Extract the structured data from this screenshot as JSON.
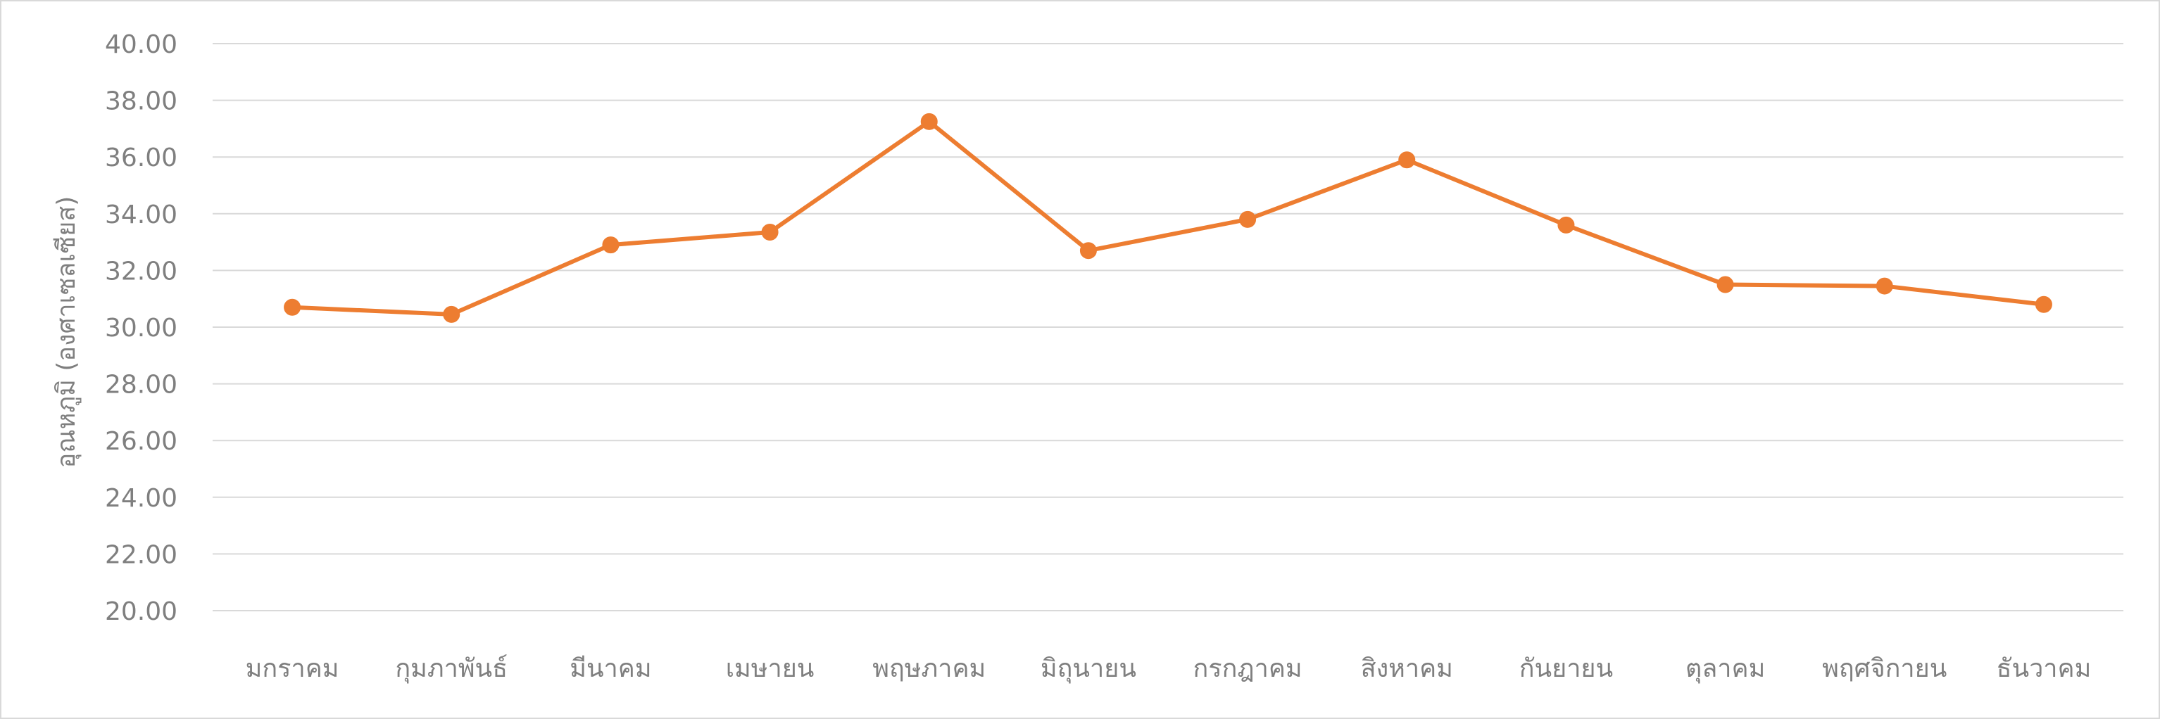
{
  "colors": {
    "series": "#ed7d31",
    "grid": "#d9d9d9",
    "text": "#7f7f7f",
    "background": "#ffffff"
  },
  "chart_data": {
    "type": "line",
    "title": "",
    "xlabel": "",
    "ylabel": "อุณหภูมิ (องศาเซลเซียส)",
    "ylim": [
      20,
      40
    ],
    "yticks": [
      "20.00",
      "22.00",
      "24.00",
      "26.00",
      "28.00",
      "30.00",
      "32.00",
      "34.00",
      "36.00",
      "38.00",
      "40.00"
    ],
    "grid": true,
    "legend": "none",
    "categories": [
      "มกราคม",
      "กุมภาพันธ์",
      "มีนาคม",
      "เมษายน",
      "พฤษภาคม",
      "มิถุนายน",
      "กรกฎาคม",
      "สิงหาคม",
      "กันยายน",
      "ตุลาคม",
      "พฤศจิกายน",
      "ธันวาคม"
    ],
    "series": [
      {
        "values": [
          30.7,
          30.45,
          32.9,
          33.35,
          37.25,
          32.7,
          33.8,
          35.9,
          33.6,
          31.5,
          31.45,
          30.8
        ]
      }
    ]
  }
}
